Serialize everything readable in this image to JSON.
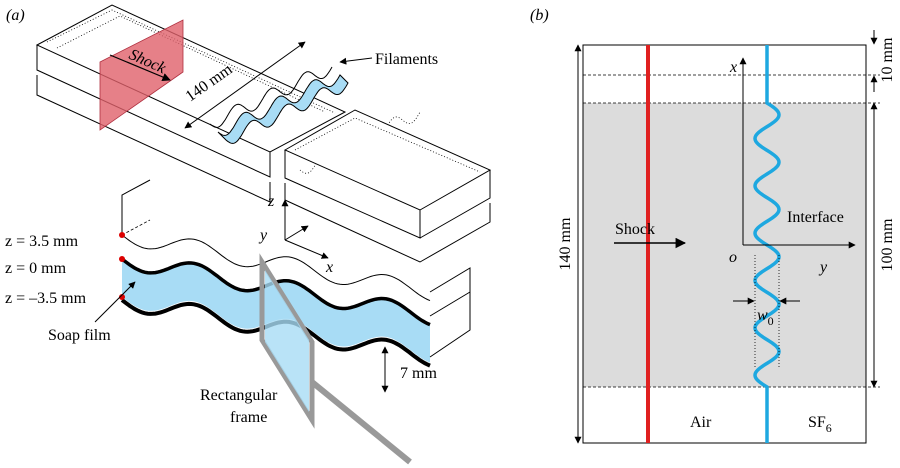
{
  "panel_a": {
    "label": "(a)",
    "shock": "Shock",
    "length": "140 mm",
    "filaments": "Filaments",
    "axes": {
      "z": "z",
      "y": "y",
      "x": "x"
    },
    "layers": [
      "z = 3.5 mm",
      "z = 0 mm",
      "z = –3.5 mm"
    ],
    "soap_film": "Soap film",
    "thickness": "7 mm",
    "frame": [
      "Rectangular",
      "frame"
    ]
  },
  "panel_b": {
    "label": "(b)",
    "axes": {
      "x": "x",
      "y": "y",
      "origin": "o"
    },
    "top_gap": "10 mm",
    "length": "140 mm",
    "shock": "Shock",
    "interface": "Interface",
    "window": "100 mm",
    "amplitude": {
      "main": "w",
      "subscript": "0"
    },
    "left_gas": "Air",
    "right_gas": {
      "main": "SF",
      "subscript": "6"
    }
  }
}
